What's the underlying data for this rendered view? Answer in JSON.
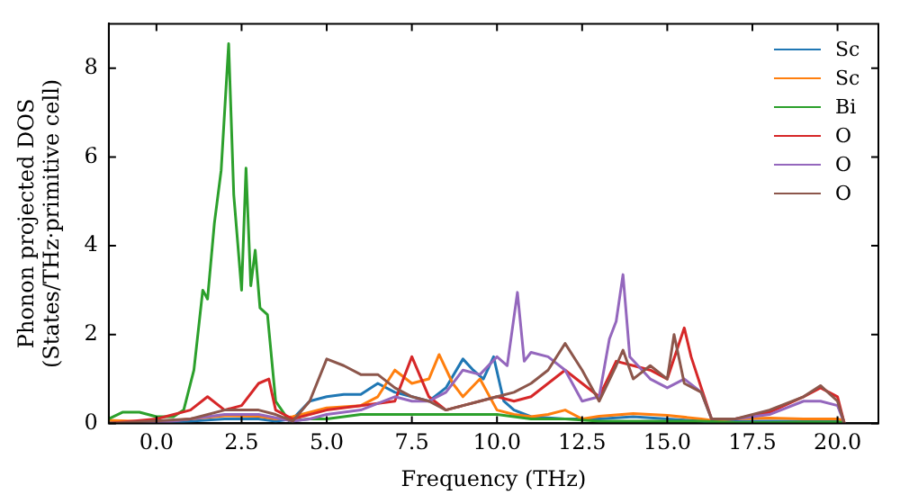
{
  "chart_data": {
    "type": "line",
    "xlabel": "Frequency (THz)",
    "ylabel": "Phonon projected DOS\n(States/THz·primitive cell)",
    "xlim": [
      -1.4,
      21.2
    ],
    "ylim": [
      0,
      9
    ],
    "xticks": [
      {
        "value": 0,
        "label": "0.0"
      },
      {
        "value": 2.5,
        "label": "2.5"
      },
      {
        "value": 5,
        "label": "5.0"
      },
      {
        "value": 7.5,
        "label": "7.5"
      },
      {
        "value": 10,
        "label": "10.0"
      },
      {
        "value": 12.5,
        "label": "12.5"
      },
      {
        "value": 15,
        "label": "15.0"
      },
      {
        "value": 17.5,
        "label": "17.5"
      },
      {
        "value": 20,
        "label": "20.0"
      }
    ],
    "yticks": [
      0,
      2,
      4,
      6,
      8
    ],
    "grid": false,
    "legend": "top right",
    "marker": "none",
    "line_style": "solid",
    "series": [
      {
        "name": "Sc",
        "color": "#1f77b4",
        "x": [
          -1.4,
          0,
          1,
          2,
          3,
          3.5,
          4,
          4.5,
          5,
          5.5,
          6,
          6.5,
          7,
          7.5,
          8,
          8.5,
          9,
          9.3,
          9.6,
          9.9,
          10.2,
          10.5,
          11,
          12,
          13,
          14,
          15,
          16,
          16.3,
          17,
          18,
          19,
          20,
          20.2
        ],
        "values": [
          0.03,
          0,
          0.05,
          0.1,
          0.1,
          0.05,
          0.1,
          0.5,
          0.6,
          0.65,
          0.65,
          0.9,
          0.7,
          0.6,
          0.5,
          0.8,
          1.45,
          1.2,
          1.0,
          1.5,
          0.5,
          0.3,
          0.15,
          0.1,
          0.1,
          0.15,
          0.1,
          0.05,
          0.02,
          0.05,
          0.05,
          0.05,
          0.05,
          0
        ]
      },
      {
        "name": "Sc",
        "color": "#ff7f0e",
        "x": [
          -1.4,
          0,
          1,
          2,
          3,
          3.5,
          4,
          5,
          6,
          6.5,
          7,
          7.5,
          8,
          8.3,
          8.7,
          9,
          9.5,
          10,
          10.5,
          11,
          11.5,
          12,
          12.5,
          13,
          14,
          15,
          16,
          16.3,
          17,
          18,
          19,
          20,
          20.2
        ],
        "values": [
          0.07,
          0.03,
          0.1,
          0.17,
          0.16,
          0.1,
          0.15,
          0.35,
          0.4,
          0.6,
          1.2,
          0.9,
          1.0,
          1.55,
          0.9,
          0.6,
          1.0,
          0.3,
          0.2,
          0.15,
          0.2,
          0.3,
          0.1,
          0.16,
          0.22,
          0.18,
          0.1,
          0.07,
          0.1,
          0.12,
          0.1,
          0.1,
          0.06
        ]
      },
      {
        "name": "Bi",
        "color": "#2ca02c",
        "x": [
          -1.4,
          -1,
          -0.5,
          0,
          0.5,
          0.8,
          1.1,
          1.36,
          1.5,
          1.7,
          1.9,
          2.12,
          2.27,
          2.5,
          2.63,
          2.77,
          2.9,
          3.04,
          3.26,
          3.5,
          3.9,
          4.5,
          5,
          6,
          7,
          8,
          9,
          10,
          11,
          12,
          13,
          14,
          15,
          16,
          17,
          18,
          19,
          20,
          20.2
        ],
        "values": [
          0.1,
          0.25,
          0.25,
          0.15,
          0.15,
          0.3,
          1.2,
          3.0,
          2.8,
          4.5,
          5.7,
          8.55,
          5.15,
          3.0,
          5.75,
          3.1,
          3.9,
          2.6,
          2.45,
          0.5,
          0.05,
          0.1,
          0.1,
          0.2,
          0.2,
          0.2,
          0.2,
          0.2,
          0.1,
          0.1,
          0.05,
          0.05,
          0.05,
          0.05,
          0.02,
          0.02,
          0.03,
          0.03,
          0.03
        ]
      },
      {
        "name": "O",
        "color": "#d62728",
        "x": [
          -1.4,
          0,
          1,
          1.5,
          2,
          2.5,
          3,
          3.3,
          3.5,
          4,
          5,
          6,
          7,
          7.5,
          8,
          8.5,
          9,
          10,
          10.5,
          11,
          11.5,
          12,
          12.5,
          13,
          13.5,
          14,
          14.5,
          15,
          15.5,
          15.7,
          16,
          16.3,
          17,
          18,
          19,
          19.5,
          20,
          20.2
        ],
        "values": [
          0,
          0.1,
          0.3,
          0.6,
          0.3,
          0.4,
          0.9,
          1.0,
          0.3,
          0.1,
          0.3,
          0.4,
          0.5,
          1.5,
          0.6,
          0.3,
          0.4,
          0.6,
          0.5,
          0.6,
          0.9,
          1.2,
          0.9,
          0.6,
          1.4,
          1.3,
          1.2,
          1.0,
          2.15,
          1.5,
          0.8,
          0.1,
          0.1,
          0.25,
          0.6,
          0.8,
          0.6,
          0
        ]
      },
      {
        "name": "O",
        "color": "#9467bd",
        "x": [
          -1.4,
          0,
          1,
          2,
          3,
          4,
          4.5,
          5,
          6,
          7,
          7.5,
          8,
          8.5,
          9,
          9.5,
          10,
          10.3,
          10.6,
          10.8,
          11,
          11.5,
          12,
          12.5,
          13,
          13.3,
          13.5,
          13.7,
          13.9,
          14.5,
          15,
          15.5,
          16,
          16.3,
          17,
          18,
          19,
          19.5,
          20,
          20.2
        ],
        "values": [
          0,
          0,
          0.1,
          0.2,
          0.2,
          0.05,
          0.1,
          0.2,
          0.3,
          0.6,
          0.5,
          0.5,
          0.7,
          1.2,
          1.1,
          1.5,
          1.3,
          2.95,
          1.4,
          1.6,
          1.5,
          1.2,
          0.5,
          0.6,
          1.9,
          2.3,
          3.35,
          1.5,
          1.0,
          0.8,
          1.0,
          0.7,
          0.1,
          0.1,
          0.2,
          0.5,
          0.5,
          0.4,
          0
        ]
      },
      {
        "name": "O",
        "color": "#8c564b",
        "x": [
          -1.4,
          1,
          2,
          3,
          3.5,
          4,
          4.5,
          5,
          5.5,
          6,
          6.5,
          7,
          7.5,
          8,
          8.5,
          9,
          9.5,
          10,
          10.5,
          11,
          11.5,
          12,
          12.5,
          13,
          13.5,
          13.7,
          14,
          14.5,
          15,
          15.2,
          15.5,
          16,
          16.3,
          17,
          18,
          19,
          19.5,
          20,
          20.2
        ],
        "values": [
          0,
          0.1,
          0.3,
          0.3,
          0.2,
          0.05,
          0.5,
          1.45,
          1.3,
          1.1,
          1.1,
          0.8,
          0.6,
          0.5,
          0.3,
          0.4,
          0.5,
          0.6,
          0.7,
          0.9,
          1.2,
          1.8,
          1.2,
          0.5,
          1.3,
          1.65,
          1.0,
          1.3,
          1.0,
          2.0,
          0.9,
          0.7,
          0.1,
          0.1,
          0.3,
          0.6,
          0.85,
          0.5,
          0
        ]
      }
    ]
  }
}
